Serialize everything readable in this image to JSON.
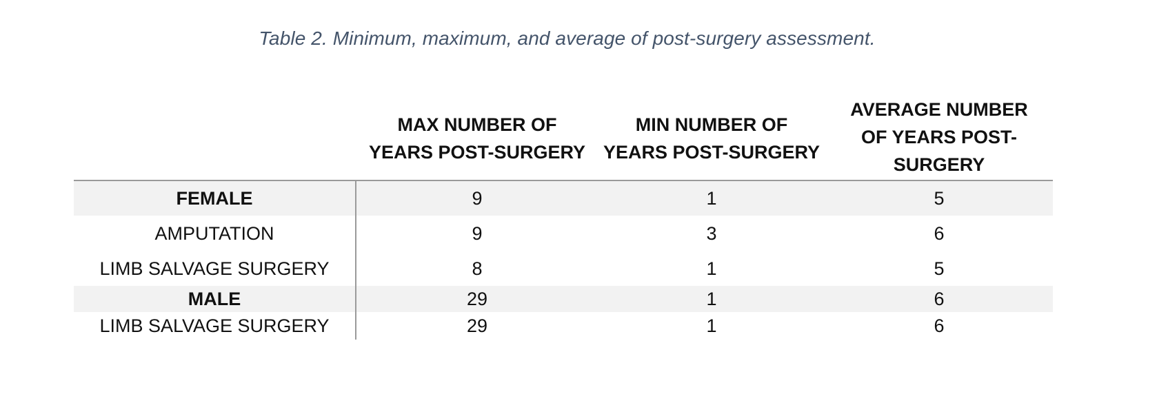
{
  "caption": "Table 2. Minimum, maximum, and average of post-surgery assessment.",
  "table": {
    "headers": [
      "",
      "MAX NUMBER OF\nYEARS POST-SURGERY",
      "MIN NUMBER OF\nYEARS POST-SURGERY",
      "AVERAGE NUMBER\nOF YEARS POST-\nSURGERY"
    ],
    "rows": [
      {
        "label": "FEMALE",
        "max": "9",
        "min": "1",
        "avg": "5"
      },
      {
        "label": "AMPUTATION",
        "max": "9",
        "min": "3",
        "avg": "6"
      },
      {
        "label": "LIMB SALVAGE SURGERY",
        "max": "8",
        "min": "1",
        "avg": "5"
      },
      {
        "label": "MALE",
        "max": "29",
        "min": "1",
        "avg": "6"
      },
      {
        "label": "LIMB SALVAGE SURGERY",
        "max": "29",
        "min": "1",
        "avg": "6"
      }
    ]
  }
}
